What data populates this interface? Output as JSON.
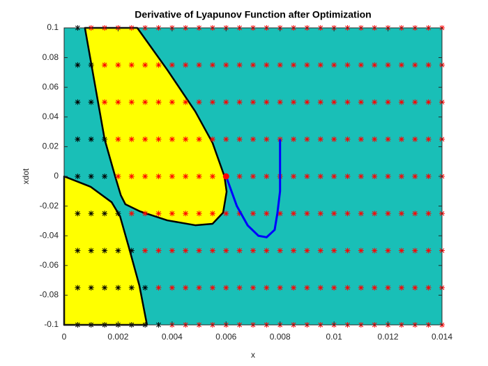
{
  "chart_data": {
    "type": "scatter",
    "title": "Derivative of Lyapunov Function after Optimization",
    "xlabel": "x",
    "ylabel": "xdot",
    "xlim": [
      0,
      0.014
    ],
    "ylim": [
      -0.1,
      0.1
    ],
    "xticks": [
      0,
      0.002,
      0.004,
      0.006,
      0.008,
      0.01,
      0.012,
      0.014
    ],
    "yticks": [
      -0.1,
      -0.08,
      -0.06,
      -0.04,
      -0.02,
      0,
      0.02,
      0.04,
      0.06,
      0.08,
      0.1
    ],
    "background": "#19bfb7",
    "regions": [
      {
        "color": "#ffff00",
        "x": [
          0.00077,
          0.0015,
          0.00189,
          0.0021,
          0.00227,
          0.0028,
          0.00382,
          0.00486,
          0.0055,
          0.00589,
          0.00602,
          0.00594,
          0.0055,
          0.00486,
          0.00382,
          0.00271
        ],
        "y": [
          0.1,
          0.025,
          0,
          -0.0127,
          -0.0188,
          -0.0235,
          -0.0296,
          -0.0329,
          -0.0319,
          -0.0244,
          -0.0103,
          0,
          0.0225,
          0.0437,
          0.0718,
          0.1
        ]
      },
      {
        "color": "#ffff00",
        "x": [
          0,
          0.00098,
          0.00176,
          0.00207,
          0.0024,
          0.00279,
          0.00307,
          0
        ],
        "y": [
          0,
          -0.007,
          -0.0174,
          -0.0268,
          -0.0479,
          -0.0737,
          -0.1,
          -0.1
        ]
      }
    ],
    "series": [
      {
        "color": "#000000",
        "y": 0.1,
        "x": [
          0.0005
        ]
      },
      {
        "color": "#ff0000",
        "y": 0.1,
        "x": [
          0.001,
          0.0015,
          0.002,
          0.0025,
          0.003,
          0.0035,
          0.004,
          0.0045,
          0.005,
          0.0055,
          0.006,
          0.0065,
          0.007,
          0.0075,
          0.008,
          0.0085,
          0.009,
          0.0095,
          0.01,
          0.0105,
          0.011,
          0.0115,
          0.012,
          0.0125,
          0.013,
          0.0135,
          0.014
        ]
      },
      {
        "color": "#000000",
        "y": 0.075,
        "x": [
          0.0005,
          0.001
        ]
      },
      {
        "color": "#ff0000",
        "y": 0.075,
        "x": [
          0.0015,
          0.002,
          0.0025,
          0.003,
          0.0035,
          0.004,
          0.0045,
          0.005,
          0.0055,
          0.006,
          0.0065,
          0.007,
          0.0075,
          0.008,
          0.0085,
          0.009,
          0.0095,
          0.01,
          0.0105,
          0.011,
          0.0115,
          0.012,
          0.0125,
          0.013,
          0.0135,
          0.014
        ]
      },
      {
        "color": "#000000",
        "y": 0.05,
        "x": [
          0.0005,
          0.001
        ]
      },
      {
        "color": "#ff0000",
        "y": 0.05,
        "x": [
          0.0015,
          0.002,
          0.0025,
          0.003,
          0.0035,
          0.004,
          0.0045,
          0.005,
          0.0055,
          0.006,
          0.0065,
          0.007,
          0.0075,
          0.008,
          0.0085,
          0.009,
          0.0095,
          0.01,
          0.0105,
          0.011,
          0.0115,
          0.012,
          0.0125,
          0.013,
          0.0135,
          0.014
        ]
      },
      {
        "color": "#000000",
        "y": 0.025,
        "x": [
          0.0005,
          0.001,
          0.0015
        ]
      },
      {
        "color": "#ff0000",
        "y": 0.025,
        "x": [
          0.002,
          0.0025,
          0.003,
          0.0035,
          0.004,
          0.0045,
          0.005,
          0.0055,
          0.006,
          0.0065,
          0.007,
          0.0075,
          0.008,
          0.0085,
          0.009,
          0.0095,
          0.01,
          0.0105,
          0.011,
          0.0115,
          0.012,
          0.0125,
          0.013,
          0.0135,
          0.014
        ]
      },
      {
        "color": "#000000",
        "y": 0,
        "x": [
          0.0005,
          0.001,
          0.0015
        ]
      },
      {
        "color": "#ff0000",
        "y": 0,
        "x": [
          0.002,
          0.0025,
          0.003,
          0.0035,
          0.004,
          0.0045,
          0.005,
          0.0055,
          0.006,
          0.0065,
          0.007,
          0.0075,
          0.008,
          0.0085,
          0.009,
          0.0095,
          0.01,
          0.0105,
          0.011,
          0.0115,
          0.012,
          0.0125,
          0.013,
          0.0135,
          0.014
        ]
      },
      {
        "color": "#000000",
        "y": -0.025,
        "x": [
          0.0005,
          0.001,
          0.0015,
          0.002
        ]
      },
      {
        "color": "#ff0000",
        "y": -0.025,
        "x": [
          0.0025,
          0.003,
          0.0035,
          0.004,
          0.0045,
          0.005,
          0.0055,
          0.006,
          0.0065,
          0.007,
          0.0075,
          0.008,
          0.0085,
          0.009,
          0.0095,
          0.01,
          0.0105,
          0.011,
          0.0115,
          0.012,
          0.0125,
          0.013,
          0.0135,
          0.014
        ]
      },
      {
        "color": "#000000",
        "y": -0.05,
        "x": [
          0.0005,
          0.001,
          0.0015,
          0.002,
          0.0025
        ]
      },
      {
        "color": "#ff0000",
        "y": -0.05,
        "x": [
          0.003,
          0.0035,
          0.004,
          0.0045,
          0.005,
          0.0055,
          0.006,
          0.0065,
          0.007,
          0.0075,
          0.008,
          0.0085,
          0.009,
          0.0095,
          0.01,
          0.0105,
          0.011,
          0.0115,
          0.012,
          0.0125,
          0.013,
          0.0135,
          0.014
        ]
      },
      {
        "color": "#000000",
        "y": -0.075,
        "x": [
          0.0005,
          0.001,
          0.0015,
          0.002,
          0.0025,
          0.003
        ]
      },
      {
        "color": "#ff0000",
        "y": -0.075,
        "x": [
          0.0035,
          0.004,
          0.0045,
          0.005,
          0.0055,
          0.006,
          0.0065,
          0.007,
          0.0075,
          0.008,
          0.0085,
          0.009,
          0.0095,
          0.01,
          0.0105,
          0.011,
          0.0115,
          0.012,
          0.0125,
          0.013,
          0.0135,
          0.014
        ]
      },
      {
        "color": "#000000",
        "y": -0.1,
        "x": [
          0.0005,
          0.001,
          0.0015,
          0.002,
          0.0025,
          0.003,
          0.0035
        ]
      },
      {
        "color": "#ff0000",
        "y": -0.1,
        "x": [
          0.004,
          0.0045,
          0.005,
          0.0055,
          0.006,
          0.0065,
          0.007,
          0.0075,
          0.008,
          0.0085,
          0.009,
          0.0095,
          0.01,
          0.0105,
          0.011,
          0.0115,
          0.012,
          0.0125,
          0.013,
          0.0135,
          0.014
        ]
      }
    ],
    "trajectory": {
      "color": "#0000ff",
      "x": [
        0.006,
        0.0064,
        0.0068,
        0.0072,
        0.0075,
        0.0078,
        0.0079,
        0.008,
        0.008,
        0.008
      ],
      "y": [
        0,
        -0.02,
        -0.033,
        -0.04,
        -0.041,
        -0.036,
        -0.025,
        -0.01,
        0.005,
        0.025
      ]
    },
    "equilibrium": {
      "color": "#ff0000",
      "x": 0.006,
      "y": 0
    }
  }
}
